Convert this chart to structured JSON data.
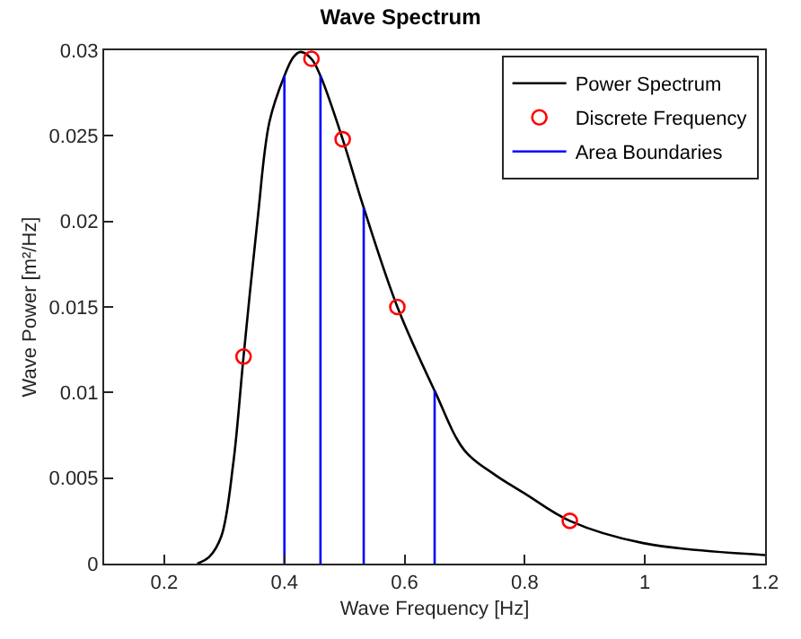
{
  "chart_data": {
    "type": "line",
    "title": "Wave Spectrum",
    "xlabel": "Wave Frequency [Hz]",
    "ylabel": "Wave Power [m²/Hz]",
    "xlim": [
      0.1,
      1.2
    ],
    "xticks": [
      0.2,
      0.4,
      0.6,
      0.8,
      1,
      1.2
    ],
    "ylim": [
      0,
      0.03
    ],
    "yticks": [
      0,
      0.005,
      0.01,
      0.015,
      0.02,
      0.025,
      0.03
    ],
    "legend": "top right",
    "series": [
      {
        "name": "Power Spectrum",
        "color": "#000000",
        "marker": "none",
        "line_style": "solid",
        "x": [
          0.255,
          0.275,
          0.295,
          0.315,
          0.332,
          0.355,
          0.375,
          0.4,
          0.415,
          0.427,
          0.445,
          0.46,
          0.497,
          0.532,
          0.588,
          0.65,
          0.7,
          0.75,
          0.8,
          0.875,
          0.997,
          1.2
        ],
        "values": [
          0,
          0.0004,
          0.0016,
          0.0059,
          0.0121,
          0.02,
          0.0258,
          0.0285,
          0.0296,
          0.0299,
          0.0295,
          0.0285,
          0.0248,
          0.0208,
          0.015,
          0.0101,
          0.0066,
          0.0052,
          0.0041,
          0.0025,
          0.0012,
          0.0005
        ]
      },
      {
        "name": "Discrete Frequency",
        "type": "scatter",
        "color": "#ff0000",
        "marker": "circle",
        "x": [
          0.332,
          0.445,
          0.497,
          0.588,
          0.875
        ],
        "values": [
          0.0121,
          0.0295,
          0.0248,
          0.015,
          0.0025
        ]
      },
      {
        "name": "Area Boundaries",
        "color": "#0000ff",
        "marker": "none",
        "line_style": "solid",
        "x": [
          0.4,
          0.4,
          null,
          0.46,
          0.46,
          null,
          0.532,
          0.532,
          null,
          0.65,
          0.65
        ],
        "values": [
          0,
          0.0285,
          null,
          0,
          0.0285,
          null,
          0,
          0.0208,
          null,
          0,
          0.0101
        ]
      }
    ]
  }
}
